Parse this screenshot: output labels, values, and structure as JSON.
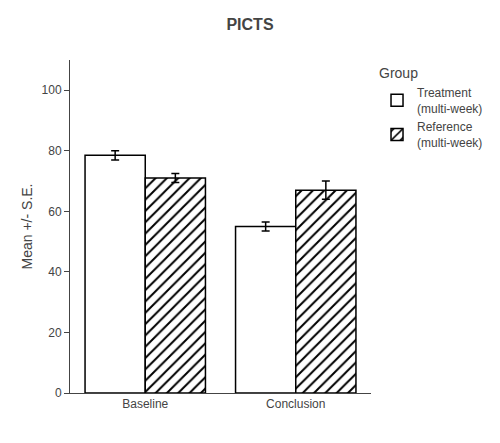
{
  "chart_data": {
    "type": "bar",
    "title": "PICTS",
    "ylabel": "Mean +/- S.E.",
    "categories": [
      "Baseline",
      "Conclusion"
    ],
    "series": [
      {
        "name": "Treatment\n(multi-week)",
        "color": "#ffffff",
        "marker": "plain",
        "values": [
          78.5,
          55.0
        ],
        "errors": [
          1.5,
          1.5
        ]
      },
      {
        "name": "Reference\n(multi-week)",
        "color": "#ffffff",
        "marker": "hatched",
        "values": [
          71.0,
          67.0
        ],
        "errors": [
          1.5,
          3.0
        ]
      }
    ],
    "ylim": [
      0,
      110
    ],
    "yticks": [
      0,
      20,
      40,
      60,
      80,
      100
    ],
    "grid": false,
    "legend": "right",
    "legend_title": "Group"
  }
}
